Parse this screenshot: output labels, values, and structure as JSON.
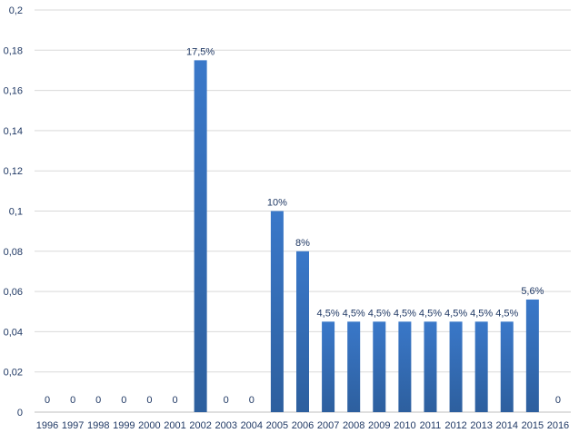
{
  "chart_data": {
    "type": "bar",
    "title": "",
    "xlabel": "",
    "ylabel": "",
    "categories": [
      "1996",
      "1997",
      "1998",
      "1999",
      "2000",
      "2001",
      "2002",
      "2003",
      "2004",
      "2005",
      "2006",
      "2007",
      "2008",
      "2009",
      "2010",
      "2011",
      "2012",
      "2013",
      "2014",
      "2015",
      "2016"
    ],
    "values": [
      0,
      0,
      0,
      0,
      0,
      0,
      0.175,
      0,
      0,
      0.1,
      0.08,
      0.045,
      0.045,
      0.045,
      0.045,
      0.045,
      0.045,
      0.045,
      0.045,
      0.056,
      0
    ],
    "data_labels": [
      "0",
      "0",
      "0",
      "0",
      "0",
      "0",
      "17,5%",
      "0",
      "0",
      "10%",
      "8%",
      "4,5%",
      "4,5%",
      "4,5%",
      "4,5%",
      "4,5%",
      "4,5%",
      "4,5%",
      "4,5%",
      "5,6%",
      "0"
    ],
    "ylim": [
      0,
      0.2
    ],
    "y_ticks": [
      0,
      0.02,
      0.04,
      0.06,
      0.08,
      0.1,
      0.12,
      0.14,
      0.16,
      0.18,
      0.2
    ],
    "y_tick_labels": [
      "0",
      "0,02",
      "0,04",
      "0,06",
      "0,08",
      "0,1",
      "0,12",
      "0,14",
      "0,16",
      "0,18",
      "0,2"
    ],
    "grid": true,
    "legend": "none",
    "bar_color": "#3a78c9",
    "bar_color_dark": "#2d5f9e",
    "text_color": "#1f3864"
  }
}
